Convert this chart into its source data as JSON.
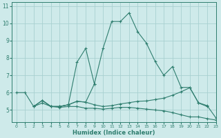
{
  "xlabel": "Humidex (Indice chaleur)",
  "xlim": [
    -0.5,
    23
  ],
  "ylim": [
    4.3,
    11.2
  ],
  "yticks": [
    5,
    6,
    7,
    8,
    9,
    10,
    11
  ],
  "xticks": [
    0,
    1,
    2,
    3,
    4,
    5,
    6,
    7,
    8,
    9,
    10,
    11,
    12,
    13,
    14,
    15,
    16,
    17,
    18,
    19,
    20,
    21,
    22,
    23
  ],
  "background_color": "#ceeaea",
  "grid_color": "#a8d0d0",
  "line_color": "#2e7d6e",
  "lines": [
    {
      "x": [
        0,
        1,
        2,
        3,
        4,
        5,
        6,
        7,
        8,
        9,
        10,
        11,
        12,
        13,
        14,
        15,
        16,
        17,
        18,
        19,
        20,
        21,
        22
      ],
      "y": [
        6.0,
        6.0,
        5.2,
        5.55,
        5.2,
        5.2,
        5.3,
        7.75,
        8.55,
        6.5,
        8.55,
        10.1,
        10.1,
        10.6,
        9.5,
        8.85,
        7.8,
        7.0,
        7.5,
        6.3,
        6.3,
        5.4,
        5.2
      ]
    },
    {
      "x": [
        3,
        4,
        5,
        6,
        7,
        8,
        9
      ],
      "y": [
        5.55,
        5.2,
        5.2,
        5.3,
        5.5,
        5.45,
        6.5
      ]
    },
    {
      "x": [
        2,
        3,
        4,
        5,
        6,
        7,
        8,
        9,
        10,
        11,
        12,
        13,
        14,
        15,
        16,
        17,
        18,
        19,
        20,
        21,
        22,
        23
      ],
      "y": [
        5.2,
        5.55,
        5.2,
        5.2,
        5.3,
        5.5,
        5.45,
        5.3,
        5.2,
        5.25,
        5.35,
        5.42,
        5.5,
        5.52,
        5.6,
        5.68,
        5.85,
        6.05,
        6.28,
        5.42,
        5.25,
        4.55
      ]
    },
    {
      "x": [
        2,
        3,
        4,
        5,
        6,
        7,
        8,
        9,
        10,
        11,
        12,
        13,
        14,
        15,
        16,
        17,
        18,
        19,
        20,
        21,
        22,
        23
      ],
      "y": [
        5.2,
        5.4,
        5.2,
        5.15,
        5.2,
        5.2,
        5.1,
        5.1,
        5.05,
        5.1,
        5.15,
        5.15,
        5.1,
        5.05,
        5.0,
        4.95,
        4.85,
        4.72,
        4.6,
        4.6,
        4.5,
        4.42
      ]
    }
  ]
}
